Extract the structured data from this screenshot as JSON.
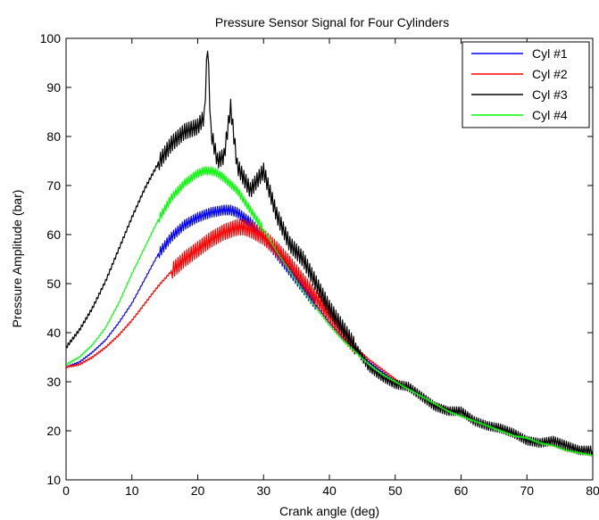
{
  "chart_data": {
    "type": "line",
    "title": "Pressure Sensor Signal for Four Cylinders",
    "xlabel": "Crank angle (deg)",
    "ylabel": "Pressure  Amplitude (bar)",
    "xlim": [
      0,
      80
    ],
    "ylim": [
      10,
      100
    ],
    "xticks": [
      0,
      10,
      20,
      30,
      40,
      50,
      60,
      70,
      80
    ],
    "yticks": [
      10,
      20,
      30,
      40,
      50,
      60,
      70,
      80,
      90,
      100
    ],
    "grid": false,
    "legend_position": "top-right",
    "series": [
      {
        "name": "Cyl #1",
        "color": "#0000ff",
        "x": [
          0,
          2,
          4,
          6,
          8,
          10,
          12,
          14,
          16,
          18,
          20,
          22,
          24,
          25,
          26,
          28,
          30,
          32,
          34,
          36,
          38,
          40,
          42,
          44,
          46,
          48,
          50,
          52,
          54,
          56,
          58,
          60,
          62,
          64,
          66,
          68,
          70,
          72,
          74,
          76,
          78,
          80
        ],
        "y": [
          33,
          34,
          36,
          38.5,
          42,
          46,
          51,
          56,
          59.5,
          62,
          63.5,
          64.5,
          65,
          65,
          64.5,
          62.5,
          59.5,
          56,
          52.5,
          49,
          45.5,
          42,
          39,
          36.5,
          34,
          32,
          30,
          28.5,
          27,
          25.5,
          24,
          23,
          22,
          21,
          20,
          19,
          18.5,
          17.5,
          17,
          16,
          15.5,
          15
        ]
      },
      {
        "name": "Cyl #2",
        "color": "#ff0000",
        "x": [
          0,
          2,
          4,
          6,
          8,
          10,
          12,
          14,
          16,
          18,
          20,
          22,
          24,
          26,
          27,
          28,
          30,
          32,
          34,
          36,
          38,
          40,
          42,
          44,
          46,
          48,
          50,
          52,
          54,
          56,
          58,
          60,
          62,
          64,
          66,
          68,
          70,
          72,
          74,
          76,
          78,
          80
        ],
        "y": [
          33,
          33.5,
          35,
          37,
          39.5,
          42.5,
          46,
          49.5,
          52.5,
          55,
          57,
          59,
          60.5,
          61.5,
          61.5,
          61,
          59.5,
          57,
          54,
          50.5,
          47,
          43.5,
          40,
          37,
          34.5,
          32.5,
          30.5,
          28.5,
          27,
          25.5,
          24.5,
          23,
          22,
          21,
          20,
          19,
          18.5,
          17.5,
          17,
          16,
          15.5,
          15
        ]
      },
      {
        "name": "Cyl #3",
        "color": "#000000",
        "x": [
          0,
          2,
          4,
          6,
          8,
          10,
          12,
          14,
          16,
          18,
          20,
          21,
          21.5,
          22,
          23,
          24,
          25,
          26,
          27,
          28,
          30,
          32,
          34,
          36,
          38,
          40,
          42,
          44,
          46,
          48,
          50,
          52,
          54,
          56,
          58,
          60,
          62,
          64,
          66,
          68,
          70,
          72,
          74,
          76,
          78,
          80
        ],
        "y": [
          37,
          40.5,
          45,
          50.5,
          57,
          63.5,
          69.5,
          74.5,
          78.5,
          81,
          82,
          84,
          99,
          81,
          75,
          76,
          86,
          74,
          71.5,
          69,
          73,
          64,
          58,
          55,
          50,
          45,
          41,
          37,
          33,
          31,
          29.5,
          29,
          27,
          25,
          24,
          24,
          22,
          21,
          20.5,
          19.5,
          18,
          17.5,
          18,
          17,
          16,
          16
        ]
      },
      {
        "name": "Cyl #4",
        "color": "#00ff00",
        "x": [
          0,
          2,
          4,
          6,
          8,
          10,
          12,
          14,
          16,
          18,
          20,
          21,
          22,
          23,
          24,
          26,
          28,
          30,
          32,
          34,
          36,
          38,
          40,
          42,
          44,
          46,
          48,
          50,
          52,
          54,
          56,
          58,
          60,
          62,
          64,
          66,
          68,
          70,
          72,
          74,
          76,
          78,
          80
        ],
        "y": [
          33.5,
          35,
          37.5,
          41,
          46,
          52,
          57.5,
          63,
          67.5,
          70.5,
          72.5,
          73,
          73,
          72.5,
          71.5,
          69,
          65,
          61,
          56.5,
          52.5,
          48.5,
          45,
          41.5,
          38.5,
          36,
          33.5,
          31.5,
          30,
          28.5,
          27,
          25.5,
          24,
          23,
          22,
          21,
          20,
          19,
          18.5,
          17.5,
          17,
          16,
          15.5,
          15
        ]
      }
    ]
  }
}
